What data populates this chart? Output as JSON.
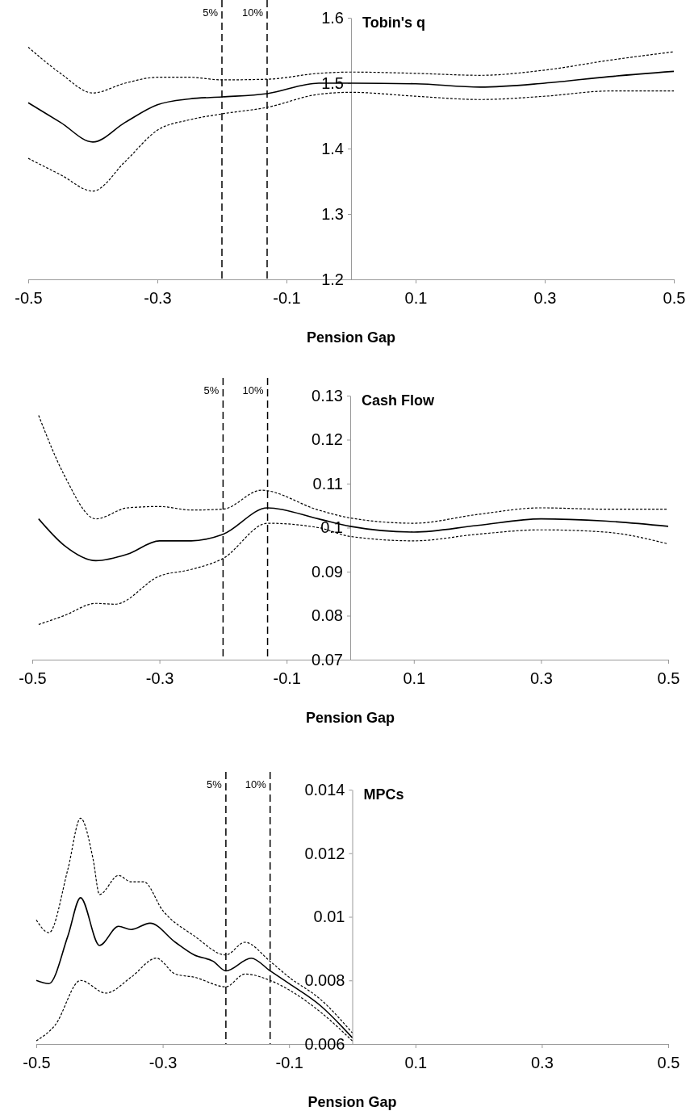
{
  "chart_data": [
    {
      "type": "line",
      "title": "Tobin's q",
      "xlabel": "Pension Gap",
      "xlim": [
        -0.5,
        0.5
      ],
      "xticks": [
        -0.5,
        -0.3,
        -0.1,
        0.1,
        0.3,
        0.5
      ],
      "ylim": [
        1.2,
        1.6
      ],
      "yticks": [
        1.2,
        1.3,
        1.4,
        1.5,
        1.6
      ],
      "ref_lines": [
        {
          "axis": "x",
          "value": -0.2,
          "line_style": "dashed"
        },
        {
          "axis": "x",
          "value": -0.13,
          "line_style": "dashed"
        }
      ],
      "annotations": [
        "5%",
        "10%"
      ],
      "series": [
        {
          "color": "#000000",
          "line_style": "solid",
          "x": [
            -0.5,
            -0.45,
            -0.4,
            -0.35,
            -0.3,
            -0.25,
            -0.2,
            -0.13,
            -0.05,
            0,
            0.1,
            0.2,
            0.3,
            0.4,
            0.5
          ],
          "values": [
            1.47,
            1.44,
            1.41,
            1.44,
            1.467,
            1.476,
            1.479,
            1.484,
            1.5,
            1.5,
            1.499,
            1.494,
            1.5,
            1.51,
            1.518
          ]
        },
        {
          "color": "#000000",
          "line_style": "dotted",
          "x": [
            -0.5,
            -0.45,
            -0.4,
            -0.35,
            -0.3,
            -0.25,
            -0.2,
            -0.13,
            -0.05,
            0,
            0.1,
            0.2,
            0.3,
            0.4,
            0.5
          ],
          "values": [
            1.555,
            1.515,
            1.485,
            1.5,
            1.509,
            1.509,
            1.505,
            1.506,
            1.515,
            1.517,
            1.515,
            1.512,
            1.52,
            1.535,
            1.548
          ]
        },
        {
          "color": "#000000",
          "line_style": "dotted",
          "x": [
            -0.5,
            -0.45,
            -0.4,
            -0.35,
            -0.3,
            -0.25,
            -0.2,
            -0.13,
            -0.05,
            0,
            0.1,
            0.2,
            0.3,
            0.4,
            0.5
          ],
          "values": [
            1.385,
            1.36,
            1.335,
            1.38,
            1.428,
            1.444,
            1.453,
            1.463,
            1.483,
            1.486,
            1.48,
            1.475,
            1.48,
            1.488,
            1.488
          ]
        }
      ]
    },
    {
      "type": "line",
      "title": "Cash Flow",
      "xlabel": "Pension Gap",
      "xlim": [
        -0.5,
        0.5
      ],
      "xticks": [
        -0.5,
        -0.3,
        -0.1,
        0.1,
        0.3,
        0.5
      ],
      "ylim": [
        0.07,
        0.13
      ],
      "yticks": [
        0.07,
        0.08,
        0.09,
        0.1,
        0.11,
        0.12,
        0.13
      ],
      "ref_lines": [
        {
          "axis": "x",
          "value": -0.2,
          "line_style": "dashed"
        },
        {
          "axis": "x",
          "value": -0.13,
          "line_style": "dashed"
        }
      ],
      "annotations": [
        "5%",
        "10%"
      ],
      "series": [
        {
          "color": "#000000",
          "line_style": "solid",
          "x": [
            -0.49,
            -0.45,
            -0.4,
            -0.35,
            -0.3,
            -0.25,
            -0.2,
            -0.13,
            -0.05,
            0,
            0.1,
            0.2,
            0.3,
            0.4,
            0.5
          ],
          "values": [
            0.102,
            0.096,
            0.0925,
            0.094,
            0.097,
            0.097,
            0.0985,
            0.1045,
            0.102,
            0.1003,
            0.099,
            0.1005,
            0.102,
            0.1015,
            0.1003
          ]
        },
        {
          "color": "#000000",
          "line_style": "dotted",
          "x": [
            -0.49,
            -0.45,
            -0.4,
            -0.35,
            -0.3,
            -0.25,
            -0.2,
            -0.14,
            -0.05,
            0,
            0.1,
            0.2,
            0.3,
            0.4,
            0.5
          ],
          "values": [
            0.1255,
            0.112,
            0.102,
            0.1045,
            0.1048,
            0.104,
            0.1042,
            0.1085,
            0.104,
            0.1022,
            0.101,
            0.103,
            0.1045,
            0.1042,
            0.1042
          ]
        },
        {
          "color": "#000000",
          "line_style": "dotted",
          "x": [
            -0.49,
            -0.45,
            -0.4,
            -0.37,
            -0.3,
            -0.25,
            -0.2,
            -0.13,
            -0.05,
            0,
            0.1,
            0.2,
            0.3,
            0.4,
            0.5
          ],
          "values": [
            0.078,
            0.08,
            0.0828,
            0.0826,
            0.089,
            0.0905,
            0.093,
            0.101,
            0.1,
            0.098,
            0.097,
            0.0985,
            0.0995,
            0.099,
            0.0963
          ]
        }
      ]
    },
    {
      "type": "line",
      "title": "MPCs",
      "xlabel": "Pension Gap",
      "xlim": [
        -0.5,
        0.5
      ],
      "xticks": [
        -0.5,
        -0.3,
        -0.1,
        0.1,
        0.3,
        0.5
      ],
      "ylim": [
        0.006,
        0.014
      ],
      "yticks": [
        0.006,
        0.008,
        0.01,
        0.012,
        0.014
      ],
      "ref_lines": [
        {
          "axis": "x",
          "value": -0.2,
          "line_style": "dashed"
        },
        {
          "axis": "x",
          "value": -0.13,
          "line_style": "dashed"
        }
      ],
      "annotations": [
        "5%",
        "10%"
      ],
      "series": [
        {
          "color": "#000000",
          "line_style": "solid",
          "x": [
            -0.5,
            -0.48,
            -0.45,
            -0.43,
            -0.4,
            -0.37,
            -0.35,
            -0.32,
            -0.28,
            -0.25,
            -0.22,
            -0.2,
            -0.16,
            -0.13,
            -0.1,
            -0.05,
            0
          ],
          "values": [
            0.008,
            0.0079,
            0.0094,
            0.0106,
            0.0091,
            0.0097,
            0.0096,
            0.0098,
            0.0092,
            0.0088,
            0.0086,
            0.0083,
            0.0087,
            0.0083,
            0.0079,
            0.0072,
            0.0062
          ]
        },
        {
          "color": "#000000",
          "line_style": "dotted",
          "x": [
            -0.5,
            -0.48,
            -0.45,
            -0.43,
            -0.41,
            -0.4,
            -0.37,
            -0.35,
            -0.33,
            -0.3,
            -0.25,
            -0.2,
            -0.17,
            -0.13,
            -0.1,
            -0.05,
            0
          ],
          "values": [
            0.0099,
            0.0095,
            0.0115,
            0.0131,
            0.0118,
            0.0107,
            0.0113,
            0.0111,
            0.0111,
            0.0102,
            0.0094,
            0.0088,
            0.0092,
            0.0086,
            0.0081,
            0.0074,
            0.00635
          ]
        },
        {
          "color": "#000000",
          "line_style": "dotted",
          "x": [
            -0.5,
            -0.47,
            -0.43,
            -0.39,
            -0.35,
            -0.31,
            -0.28,
            -0.25,
            -0.2,
            -0.17,
            -0.13,
            -0.1,
            -0.05,
            0
          ],
          "values": [
            0.0061,
            0.0066,
            0.008,
            0.0076,
            0.0081,
            0.0087,
            0.0082,
            0.0081,
            0.0078,
            0.0082,
            0.008,
            0.0077,
            0.007,
            0.0061
          ]
        }
      ]
    }
  ]
}
